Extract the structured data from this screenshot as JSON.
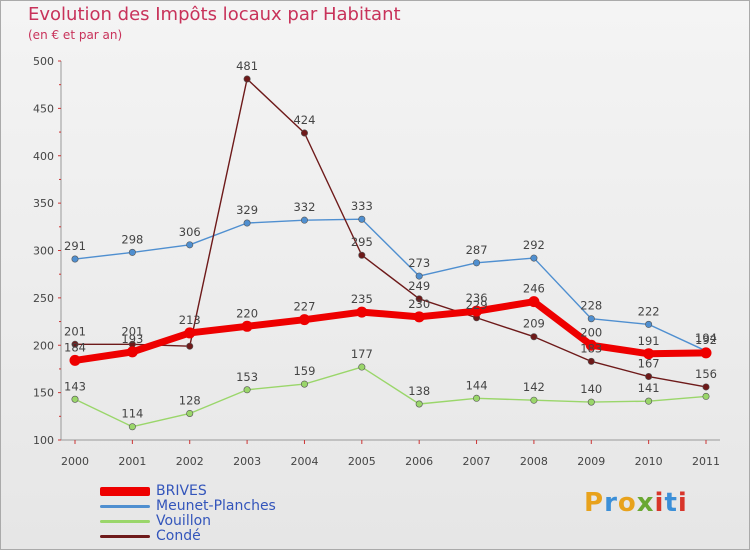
{
  "header": {
    "title": "Evolution des Impôts locaux par Habitant",
    "subtitle": "(en € et par an)"
  },
  "brand": {
    "logo_text": "Proxiti",
    "logo_colors": [
      "#e8a21c",
      "#3b8fd8",
      "#e8a21c",
      "#6aa832",
      "#d8352a",
      "#3b8fd8",
      "#d8352a"
    ]
  },
  "chart_data": {
    "type": "line",
    "categories": [
      "2000",
      "2001",
      "2002",
      "2003",
      "2004",
      "2005",
      "2006",
      "2007",
      "2008",
      "2009",
      "2010",
      "2011"
    ],
    "ylim": [
      100,
      500
    ],
    "yticks": [
      "100",
      "150",
      "200",
      "250",
      "300",
      "350",
      "400",
      "450",
      "500"
    ],
    "grid": false,
    "legend_position": "bottom-left",
    "series": [
      {
        "name": "BRIVES",
        "color": "#ee0000",
        "width": "thick",
        "values": [
          184,
          193,
          213,
          220,
          227,
          235,
          230,
          236,
          246,
          200,
          191,
          192
        ]
      },
      {
        "name": "Meunet-Planches",
        "color": "#4f8fd0",
        "width": "thin",
        "values": [
          291,
          298,
          306,
          329,
          332,
          333,
          273,
          287,
          292,
          228,
          222,
          194
        ]
      },
      {
        "name": "Vouillon",
        "color": "#9ad66a",
        "width": "thin",
        "values": [
          143,
          114,
          128,
          153,
          159,
          177,
          138,
          144,
          142,
          140,
          141,
          146
        ]
      },
      {
        "name": "Condé",
        "color": "#6e1a1a",
        "width": "thin",
        "values": [
          201,
          201,
          199,
          481,
          424,
          295,
          249,
          229,
          209,
          183,
          167,
          156
        ]
      }
    ],
    "labels": {
      "BRIVES": [
        "184",
        "193",
        "213",
        "220",
        "227",
        "235",
        "230",
        "236",
        "246",
        "200",
        "191",
        "192"
      ],
      "Meunet-Planches": [
        "291",
        "298",
        "306",
        "329",
        "332",
        "333",
        "273",
        "287",
        "292",
        "228",
        "222",
        "194"
      ],
      "Vouillon": [
        "143",
        "114",
        "128",
        "153",
        "159",
        "177",
        "138",
        "144",
        "142",
        "140",
        "141",
        ""
      ],
      "Condé": [
        "201",
        "201",
        "",
        "481",
        "424",
        "295",
        "249",
        "229",
        "209",
        "183",
        "167",
        "156"
      ]
    }
  }
}
